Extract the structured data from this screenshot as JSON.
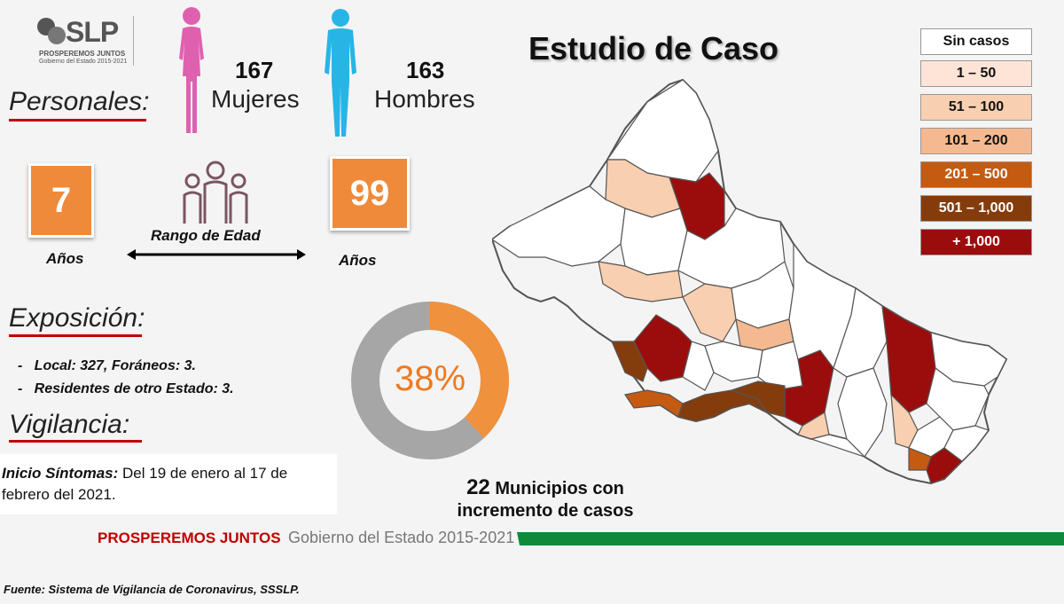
{
  "logo": {
    "text": "SLP",
    "tagline": "PROSPEREMOS JUNTOS",
    "sub": "Gobierno del Estado 2015-2021"
  },
  "title": "Estudio de Caso",
  "personales": {
    "heading": "Personales:",
    "mujeres_count": "167",
    "mujeres_label": "Mujeres",
    "hombres_count": "163",
    "hombres_label": "Hombres"
  },
  "edad": {
    "min": "7",
    "min_unit": "Años",
    "max": "99",
    "max_unit": "Años",
    "label": "Rango de Edad"
  },
  "exposicion": {
    "heading": "Exposición:",
    "items": [
      "Local: 327, Foráneos: 3.",
      "Residentes de otro Estado: 3."
    ]
  },
  "vigilancia": {
    "heading": "Vigilancia:",
    "label": "Inicio Síntomas:",
    "text": " Del 19 de enero al 17 de febrero del 2021."
  },
  "donut": {
    "value": 38,
    "label": "38%",
    "colors": {
      "fill": "#f0913e",
      "rest": "#a6a6a6"
    }
  },
  "municipios": {
    "count": "22",
    "text_line1": "Municipios con",
    "text_line2": "incremento de casos"
  },
  "legend": [
    {
      "label": "Sin casos",
      "color": "#ffffff",
      "text_color": "#111111"
    },
    {
      "label": "1 – 50",
      "color": "#fde4d6",
      "text_color": "#111111"
    },
    {
      "label": "51 – 100",
      "color": "#f8cfb0",
      "text_color": "#111111"
    },
    {
      "label": "101 – 200",
      "color": "#f4b990",
      "text_color": "#111111"
    },
    {
      "label": "201 – 500",
      "color": "#c55a11",
      "text_color": "#ffffff"
    },
    {
      "label": "501 – 1,000",
      "color": "#843c0c",
      "text_color": "#ffffff"
    },
    {
      "label": "+ 1,000",
      "color": "#9b0d0d",
      "text_color": "#ffffff"
    }
  ],
  "footer": {
    "brand_red": "PROSPEREMOS JUNTOS",
    "brand_gray": "Gobierno del Estado 2015-2021",
    "fuente": "Fuente: Sistema de Vigilancia de Coronavirus, SSSLP."
  }
}
